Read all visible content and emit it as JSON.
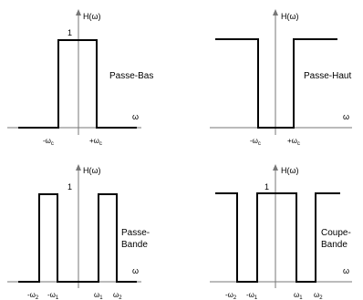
{
  "y_axis_label": "H(ω)",
  "x_axis_label": "ω",
  "unity_label": "1",
  "panels": {
    "lowpass": {
      "name": "Passe-Bas",
      "ticks": {
        "neg_c": "-ω",
        "neg_c_sub": "c",
        "pos_c": "+ω",
        "pos_c_sub": "c"
      }
    },
    "highpass": {
      "name": "Passe-Haut",
      "ticks": {
        "neg_c": "-ω",
        "neg_c_sub": "c",
        "pos_c": "+ω",
        "pos_c_sub": "c"
      }
    },
    "bandpass": {
      "name_line1": "Passe-",
      "name_line2": "Bande",
      "ticks": {
        "neg2": "-ω",
        "neg2_sub": "2",
        "neg1": "-ω",
        "neg1_sub": "1",
        "pos1": "ω",
        "pos1_sub": "1",
        "pos2": "ω",
        "pos2_sub": "2"
      }
    },
    "bandstop": {
      "name_line1": "Coupe-",
      "name_line2": "Bande",
      "ticks": {
        "neg2": "-ω",
        "neg2_sub": "2",
        "neg1": "-ω",
        "neg1_sub": "1",
        "pos1": "ω",
        "pos1_sub": "1",
        "pos2": "ω",
        "pos2_sub": "2"
      }
    }
  }
}
